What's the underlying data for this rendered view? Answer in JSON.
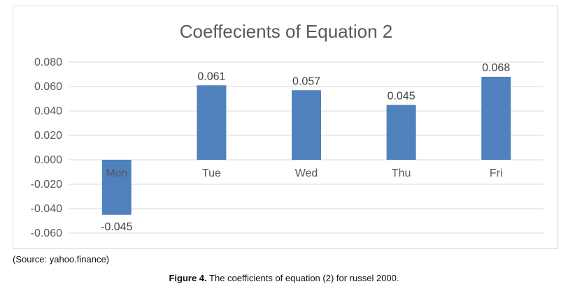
{
  "chart_data": {
    "type": "bar",
    "title": "Coeffecients of Equation 2",
    "categories": [
      "Mon",
      "Tue",
      "Wed",
      "Thu",
      "Fri"
    ],
    "values": [
      -0.045,
      0.061,
      0.057,
      0.045,
      0.068
    ],
    "value_labels": [
      "-0.045",
      "0.061",
      "0.057",
      "0.045",
      "0.068"
    ],
    "ylim": [
      -0.06,
      0.08
    ],
    "yticks": [
      0.08,
      0.06,
      0.04,
      0.02,
      0.0,
      -0.02,
      -0.04,
      -0.06
    ],
    "ytick_labels": [
      "0.080",
      "0.060",
      "0.040",
      "0.020",
      "0.000",
      "-0.020",
      "-0.040",
      "-0.060"
    ],
    "xlabel": "",
    "ylabel": "",
    "grid": true,
    "legend": "none",
    "colors": {
      "bar": "#4f81bd",
      "grid": "#d9d9d9",
      "text": "#595959"
    }
  },
  "source_note": "(Source: yahoo.finance)",
  "caption": {
    "figure_number": "Figure 4.",
    "text": " The coefficients of equation (2) for russel 2000."
  }
}
